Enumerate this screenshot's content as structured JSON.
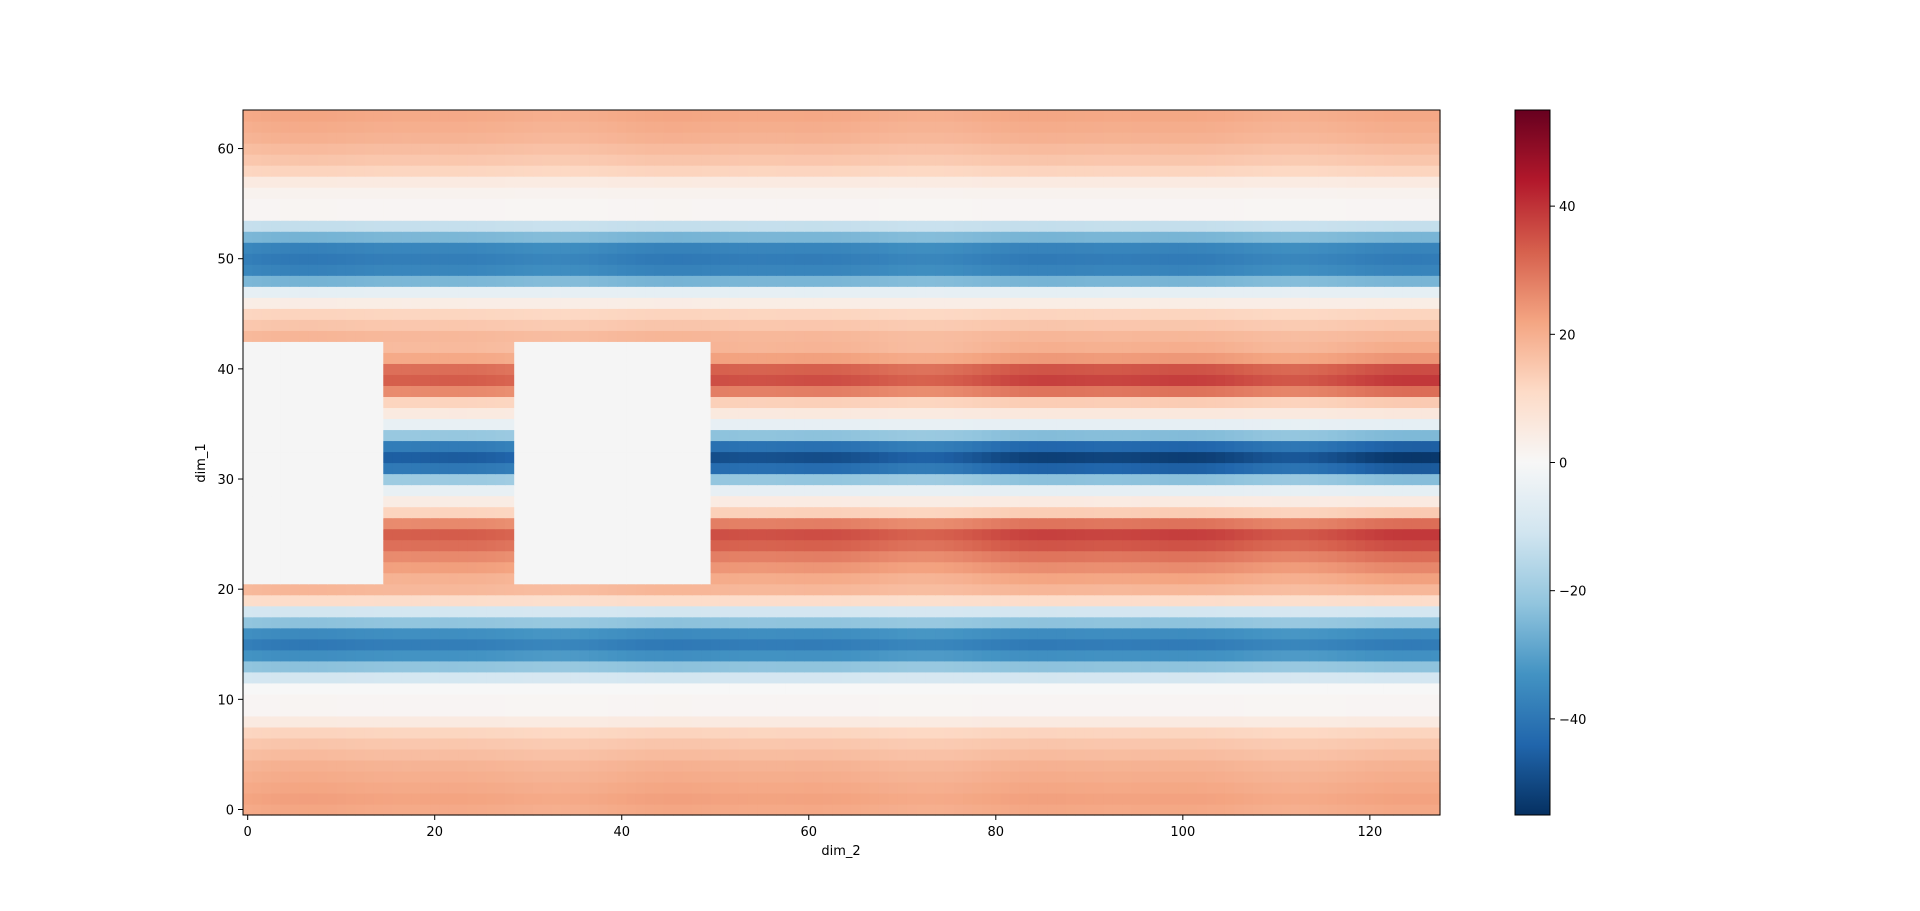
{
  "chart_data": {
    "type": "heatmap",
    "title": "",
    "xlabel": "dim_2",
    "ylabel": "dim_1",
    "x_ticks": [
      0,
      20,
      40,
      60,
      80,
      100,
      120
    ],
    "y_ticks": [
      0,
      10,
      20,
      30,
      40,
      50,
      60
    ],
    "xlim": [
      -0.5,
      127.5
    ],
    "ylim": [
      -0.5,
      63.5
    ],
    "n_cols": 128,
    "n_rows": 64,
    "colormap": "RdBu_r",
    "colorbar": {
      "vmin": -55,
      "vmax": 55,
      "ticks": [
        -40,
        -20,
        0,
        20,
        40
      ],
      "tick_labels": [
        "−40",
        "−20",
        "0",
        "20",
        "40"
      ]
    },
    "row_profile": [
      21,
      22,
      21,
      20,
      19,
      17,
      15,
      12,
      5,
      1,
      1,
      0,
      -10,
      -22,
      -33,
      -38,
      -34,
      -22,
      -10,
      10,
      18,
      22,
      26,
      30,
      35,
      38,
      30,
      14,
      5,
      -5,
      -23,
      -45,
      -52,
      -44,
      -24,
      -5,
      6,
      14,
      30,
      38,
      35,
      24,
      20,
      18,
      15,
      12,
      4,
      -5,
      -25,
      -36,
      -38,
      -36,
      -25,
      -13,
      1,
      1,
      2,
      5,
      12,
      15,
      17,
      19,
      20,
      21
    ],
    "column_modulation": "outer band rows vary weakly with column; rows 21-42 vary strongly (peaks near columns 65, 100, 125)",
    "masked_value": "missing (drawn as light grey)",
    "masked_regions": [
      {
        "x_range": [
          0,
          14
        ],
        "y_range": [
          21,
          42
        ]
      },
      {
        "x_range": [
          29,
          49
        ],
        "y_range": [
          21,
          42
        ]
      }
    ]
  }
}
